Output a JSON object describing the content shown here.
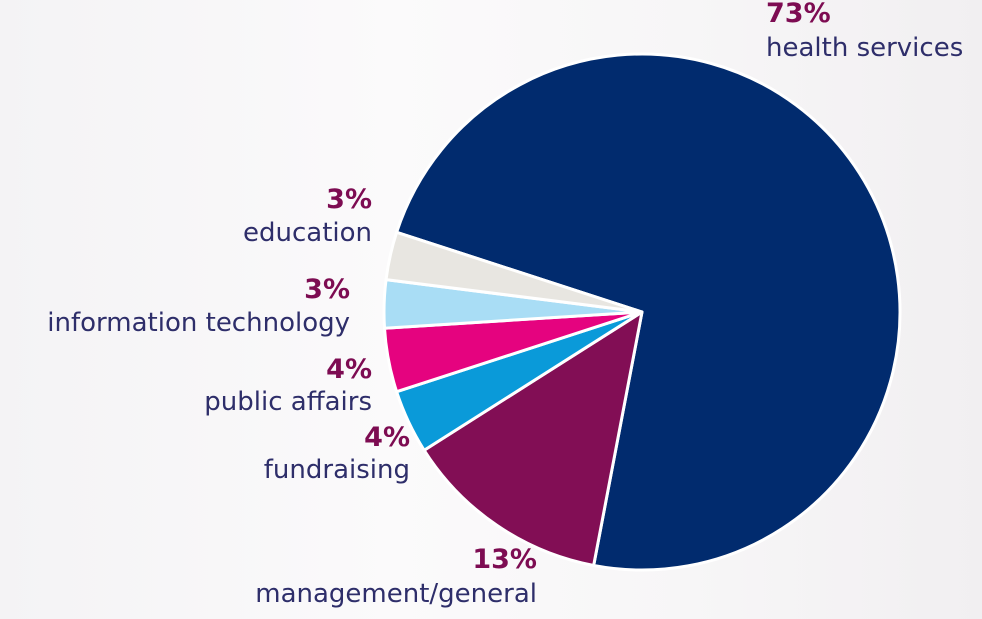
{
  "chart_data": {
    "type": "pie",
    "categories": [
      "health services",
      "management/general",
      "fundraising",
      "public affairs",
      "information technology",
      "education"
    ],
    "values": [
      73,
      13,
      4,
      4,
      3,
      3
    ],
    "value_labels": [
      "73%",
      "13%",
      "4%",
      "4%",
      "3%",
      "3%"
    ],
    "colors": [
      "#012b6e",
      "#820e55",
      "#0a9ad9",
      "#e5037f",
      "#a9ddf5",
      "#e8e6e1"
    ]
  }
}
